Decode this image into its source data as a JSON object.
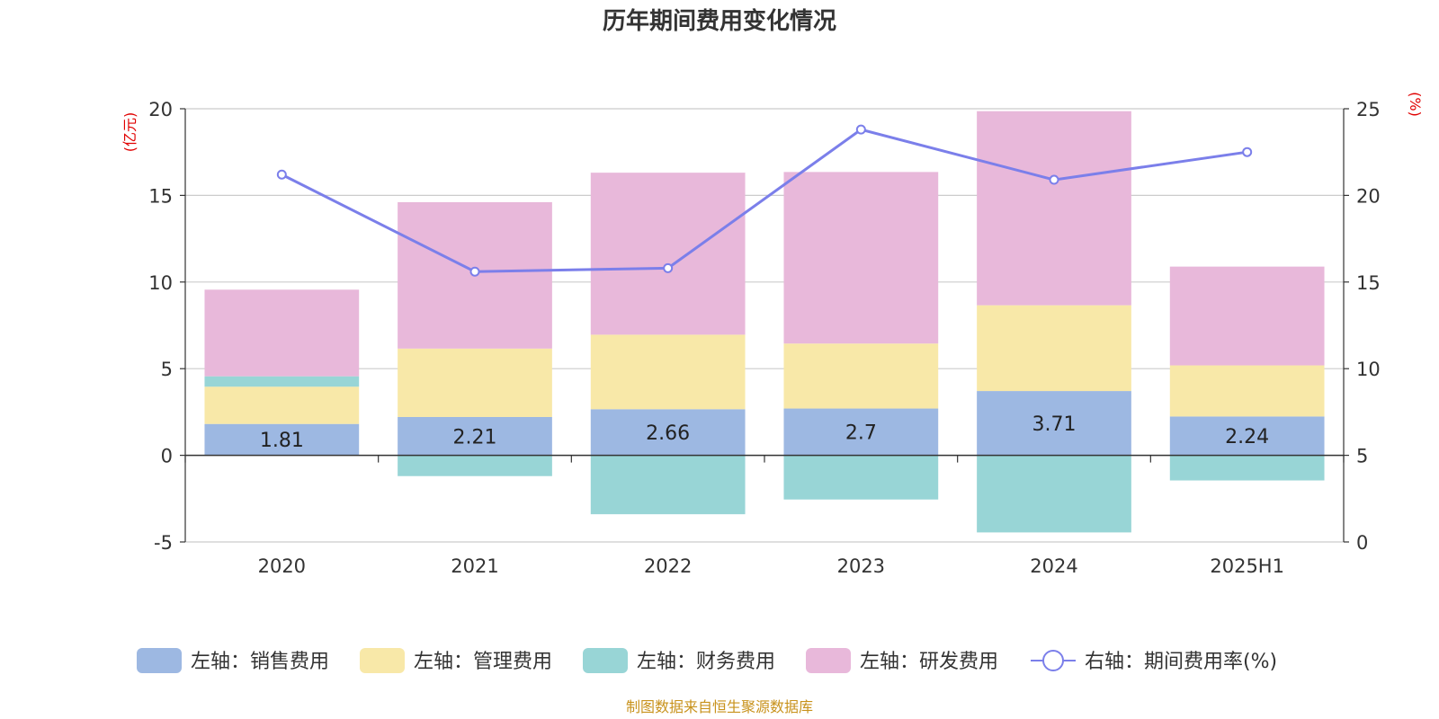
{
  "chart_data": {
    "type": "bar",
    "title": "历年期间费用变化情况",
    "categories": [
      "2020",
      "2021",
      "2022",
      "2023",
      "2024",
      "2025H1"
    ],
    "left_axis": {
      "unit_label": "(亿元)",
      "ylim": [
        -5,
        20
      ],
      "ticks": [
        -5,
        0,
        5,
        10,
        15,
        20
      ]
    },
    "right_axis": {
      "unit_label": "(%)",
      "ylim": [
        0,
        25
      ],
      "ticks": [
        0,
        5,
        10,
        15,
        20,
        25
      ]
    },
    "series": [
      {
        "name": "左轴：销售费用",
        "type": "bar",
        "axis": "left",
        "color": "#9db8e2",
        "values": [
          1.81,
          2.21,
          2.66,
          2.7,
          3.71,
          2.24
        ],
        "labels": [
          "1.81",
          "2.21",
          "2.66",
          "2.7",
          "3.71",
          "2.24"
        ]
      },
      {
        "name": "左轴：管理费用",
        "type": "bar",
        "axis": "left",
        "color": "#f8e8a8",
        "values": [
          2.15,
          3.95,
          4.3,
          3.75,
          4.95,
          2.95
        ]
      },
      {
        "name": "左轴：财务费用",
        "type": "bar",
        "axis": "left",
        "color": "#98d5d6",
        "values": [
          0.6,
          -1.2,
          -3.4,
          -2.55,
          -4.45,
          -1.45
        ]
      },
      {
        "name": "左轴：研发费用",
        "type": "bar",
        "axis": "left",
        "color": "#e8b8da",
        "values": [
          5.0,
          8.45,
          9.35,
          9.9,
          11.2,
          5.7
        ]
      },
      {
        "name": "右轴：期间费用率(%)",
        "type": "line",
        "axis": "right",
        "color": "#7b7fea",
        "values": [
          21.2,
          15.6,
          15.8,
          23.8,
          20.9,
          22.5
        ]
      }
    ],
    "grid": true,
    "legend_position": "bottom"
  },
  "source_note": "制图数据来自恒生聚源数据库"
}
